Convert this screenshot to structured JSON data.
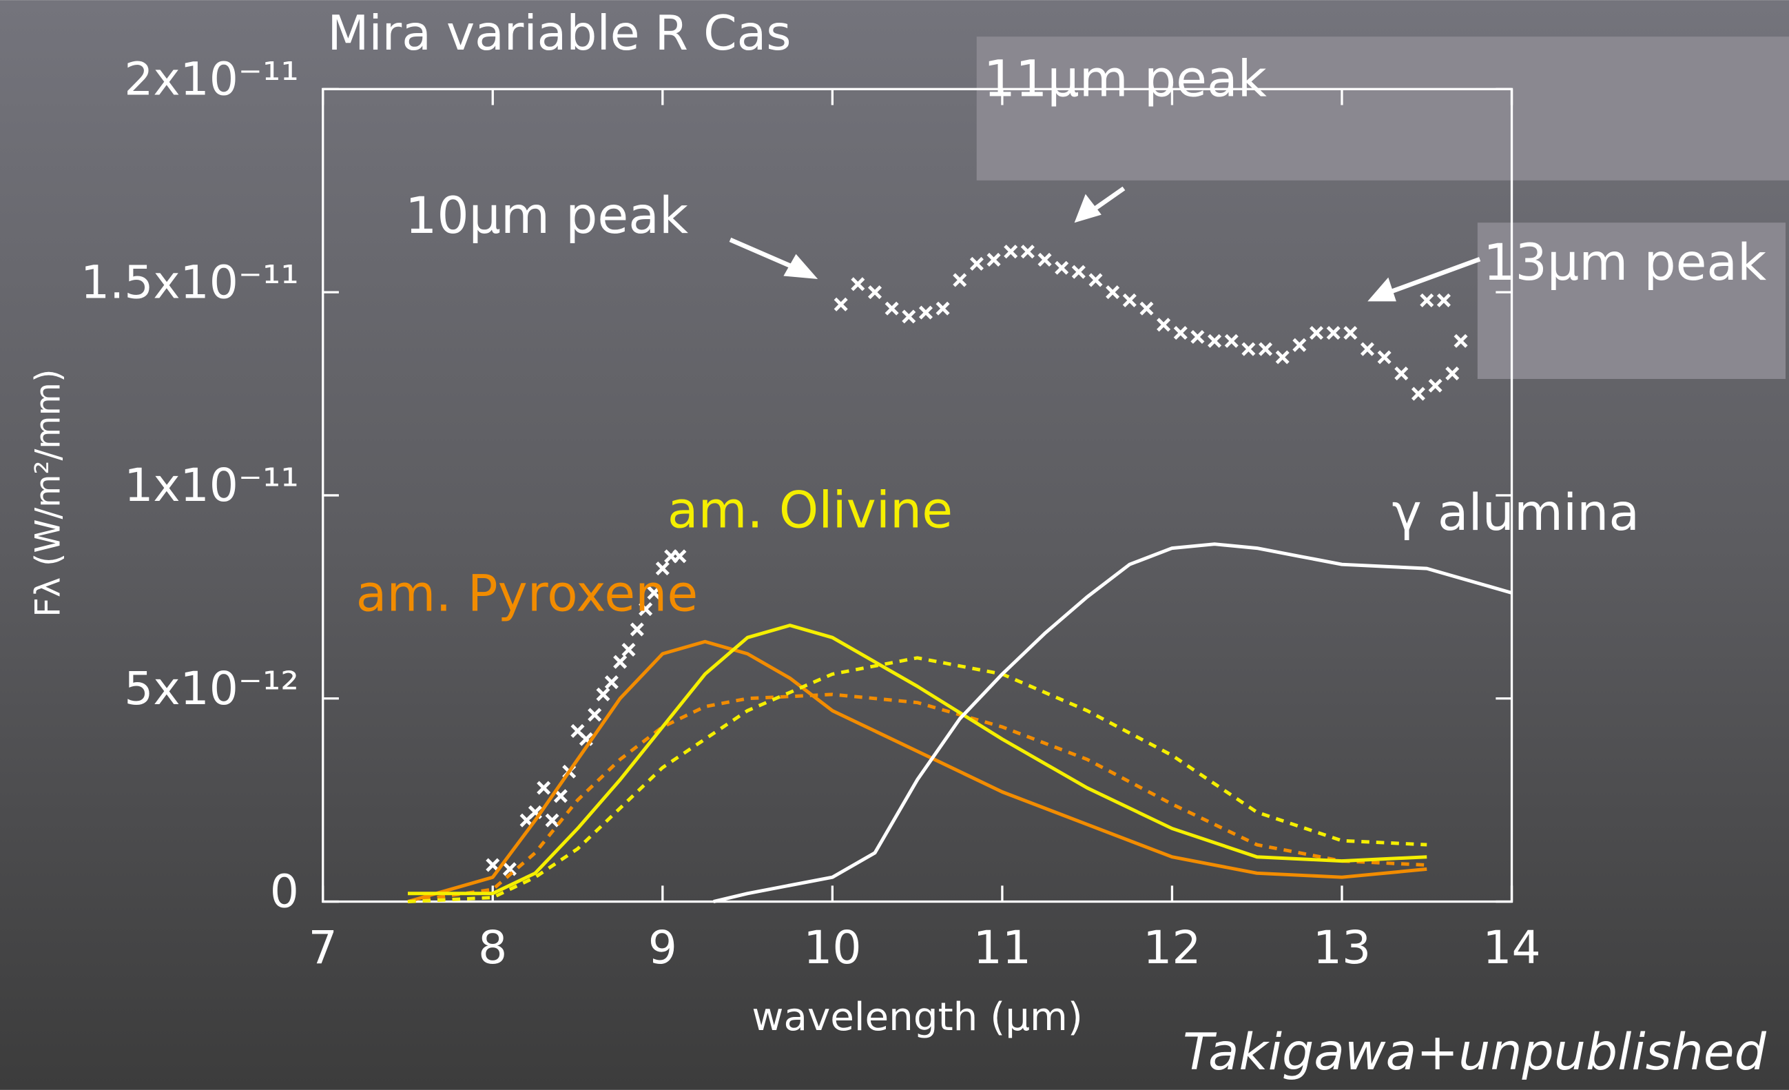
{
  "chart_data": {
    "type": "line",
    "title": "Mira variable R Cas",
    "xlabel": "wavelength (μm)",
    "ylabel": "Fλ (W/m²/mm)",
    "credit": "Takigawa+unpublished",
    "annotations": [
      "10μm peak",
      "11μm peak",
      "13μm peak"
    ],
    "xlim": [
      7,
      14
    ],
    "xticks": [
      7,
      8,
      9,
      10,
      11,
      12,
      13,
      14
    ],
    "ylim": [
      0,
      2e-11
    ],
    "yticks": [
      0,
      {
        "value": 5e-12,
        "label": "5x10⁻¹²"
      },
      {
        "value": 1e-11,
        "label": "1x10⁻¹¹"
      },
      {
        "value": 1.5e-11,
        "label": "1.5x10⁻¹¹"
      },
      {
        "value": 2e-11,
        "label": "2x10⁻¹¹"
      }
    ],
    "series": [
      {
        "mode": "markers",
        "color": "#ffffff",
        "x": [
          8.0,
          8.1,
          8.2,
          8.25,
          8.3,
          8.35,
          8.4,
          8.45,
          8.5,
          8.55,
          8.6,
          8.65,
          8.7,
          8.75,
          8.8,
          8.85,
          8.9,
          8.95,
          9.0,
          9.05,
          9.1,
          10.05,
          10.15,
          10.25,
          10.35,
          10.45,
          10.55,
          10.65,
          10.75,
          10.85,
          10.95,
          11.05,
          11.15,
          11.25,
          11.35,
          11.45,
          11.55,
          11.65,
          11.75,
          11.85,
          11.95,
          12.05,
          12.15,
          12.25,
          12.35,
          12.45,
          12.55,
          12.65,
          12.75,
          12.85,
          12.95,
          13.05,
          13.15,
          13.25,
          13.35,
          13.45,
          13.55,
          13.65,
          13.5,
          13.6,
          13.7
        ],
        "values": [
          9e-13,
          8e-13,
          2e-12,
          2.2e-12,
          2.8e-12,
          2e-12,
          2.6e-12,
          3.2e-12,
          4.2e-12,
          4e-12,
          4.6e-12,
          5.1e-12,
          5.4e-12,
          5.9e-12,
          6.2e-12,
          6.7e-12,
          7.2e-12,
          7.6e-12,
          8.2e-12,
          8.5e-12,
          8.5e-12,
          1.47e-11,
          1.52e-11,
          1.5e-11,
          1.46e-11,
          1.44e-11,
          1.45e-11,
          1.46e-11,
          1.53e-11,
          1.57e-11,
          1.58e-11,
          1.6e-11,
          1.6e-11,
          1.58e-11,
          1.56e-11,
          1.55e-11,
          1.53e-11,
          1.5e-11,
          1.48e-11,
          1.46e-11,
          1.42e-11,
          1.4e-11,
          1.39e-11,
          1.38e-11,
          1.38e-11,
          1.36e-11,
          1.36e-11,
          1.34e-11,
          1.37e-11,
          1.4e-11,
          1.4e-11,
          1.4e-11,
          1.36e-11,
          1.34e-11,
          1.3e-11,
          1.25e-11,
          1.27e-11,
          1.3e-11,
          1.48e-11,
          1.48e-11,
          1.38e-11
        ]
      },
      {
        "name": "am. Pyroxene",
        "mode": "lines",
        "dashed": false,
        "color": "#f28c00",
        "x": [
          7.5,
          8.0,
          8.25,
          8.5,
          8.75,
          9.0,
          9.25,
          9.5,
          9.75,
          10.0,
          10.5,
          11.0,
          11.5,
          12.0,
          12.5,
          13.0,
          13.5
        ],
        "values": [
          0,
          6e-13,
          2e-12,
          3.5e-12,
          5e-12,
          6.1e-12,
          6.4e-12,
          6.1e-12,
          5.5e-12,
          4.7e-12,
          3.7e-12,
          2.7e-12,
          1.9e-12,
          1.1e-12,
          7e-13,
          6e-13,
          8e-13
        ]
      },
      {
        "mode": "lines",
        "dashed": true,
        "color": "#f28c00",
        "x": [
          7.5,
          8.0,
          8.25,
          8.5,
          8.75,
          9.0,
          9.25,
          9.5,
          10.0,
          10.5,
          11.0,
          11.5,
          12.0,
          12.5,
          13.0,
          13.5
        ],
        "values": [
          0,
          3e-13,
          1.2e-12,
          2.5e-12,
          3.5e-12,
          4.3e-12,
          4.8e-12,
          5e-12,
          5.1e-12,
          4.9e-12,
          4.3e-12,
          3.5e-12,
          2.4e-12,
          1.4e-12,
          1e-12,
          9e-13
        ]
      },
      {
        "name": "am. Olivine",
        "mode": "lines",
        "dashed": false,
        "color": "#f5ef00",
        "x": [
          7.5,
          8.0,
          8.25,
          8.5,
          8.75,
          9.0,
          9.25,
          9.5,
          9.75,
          10.0,
          10.5,
          11.0,
          11.5,
          12.0,
          12.5,
          13.0,
          13.5
        ],
        "values": [
          2e-13,
          2e-13,
          7e-13,
          1.8e-12,
          3e-12,
          4.3e-12,
          5.6e-12,
          6.5e-12,
          6.8e-12,
          6.5e-12,
          5.3e-12,
          4e-12,
          2.8e-12,
          1.8e-12,
          1.1e-12,
          1e-12,
          1.1e-12
        ]
      },
      {
        "mode": "lines",
        "dashed": true,
        "color": "#f5ef00",
        "x": [
          7.5,
          8.0,
          8.25,
          8.5,
          8.75,
          9.0,
          9.5,
          10.0,
          10.5,
          11.0,
          11.5,
          12.0,
          12.5,
          13.0,
          13.5
        ],
        "values": [
          0,
          1e-13,
          6e-13,
          1.3e-12,
          2.3e-12,
          3.3e-12,
          4.7e-12,
          5.6e-12,
          6e-12,
          5.6e-12,
          4.7e-12,
          3.6e-12,
          2.2e-12,
          1.5e-12,
          1.4e-12
        ]
      },
      {
        "name": "γ alumina",
        "mode": "lines",
        "dashed": false,
        "color": "#ffffff",
        "x": [
          9.3,
          9.5,
          10.0,
          10.25,
          10.5,
          10.75,
          11.0,
          11.25,
          11.5,
          11.75,
          12.0,
          12.25,
          12.5,
          12.75,
          13.0,
          13.5,
          14.0
        ],
        "values": [
          0,
          2e-13,
          6e-13,
          1.2e-12,
          3e-12,
          4.5e-12,
          5.6e-12,
          6.6e-12,
          7.5e-12,
          8.3e-12,
          8.7e-12,
          8.8e-12,
          8.7e-12,
          8.5e-12,
          8.3e-12,
          8.2e-12,
          7.6e-12
        ]
      }
    ]
  }
}
